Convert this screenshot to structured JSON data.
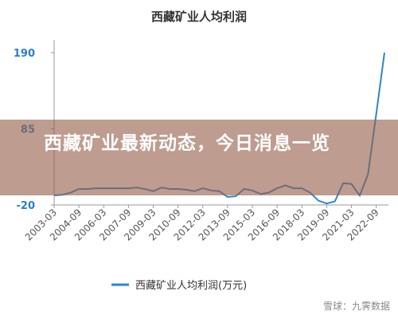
{
  "chart_data": {
    "type": "line",
    "title": "西藏矿业人均利润",
    "categories": [
      "2003-03",
      null,
      null,
      "2004-09",
      null,
      null,
      "2006-03",
      null,
      null,
      "2007-09",
      null,
      null,
      "2009-03",
      null,
      null,
      "2010-09",
      null,
      null,
      "2012-03",
      null,
      null,
      "2013-09",
      null,
      null,
      "2015-03",
      null,
      null,
      "2016-09",
      null,
      null,
      "2018-03",
      null,
      null,
      "2019-09",
      null,
      null,
      "2021-03",
      null,
      null,
      "2022-09",
      null
    ],
    "series": [
      {
        "name": "西藏矿业人均利润(万元)",
        "color": "#2e86c9",
        "values": [
          -7,
          -6,
          -3,
          2,
          2,
          3,
          3,
          3,
          3,
          3,
          4,
          2,
          -1,
          4,
          2,
          2,
          1,
          -1,
          3,
          0,
          -1,
          -9,
          -8,
          2,
          0,
          -5,
          -3,
          3,
          7,
          3,
          3,
          -3,
          -14,
          -18,
          -15,
          10,
          9,
          -7,
          22,
          105,
          190
        ]
      }
    ],
    "ylim": [
      -20,
      190
    ],
    "yticks": [
      -20,
      85,
      190
    ],
    "grid": false
  },
  "banner": {
    "text": "西藏矿业最新动态，今日消息一览"
  },
  "watermark": {
    "text": "雪球：九霁数据"
  }
}
